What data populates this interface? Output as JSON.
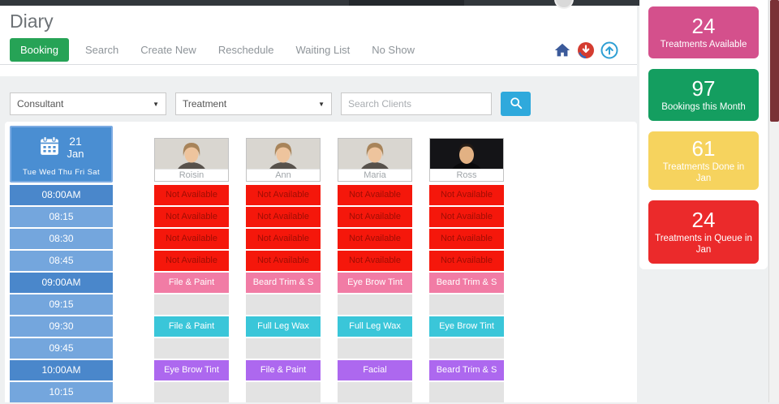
{
  "header": {
    "title": "Diary"
  },
  "tabs": [
    {
      "label": "Booking",
      "active": true
    },
    {
      "label": "Search",
      "active": false
    },
    {
      "label": "Create New",
      "active": false
    },
    {
      "label": "Reschedule",
      "active": false
    },
    {
      "label": "Waiting List",
      "active": false
    },
    {
      "label": "No Show",
      "active": false
    }
  ],
  "toolbar_icons": [
    {
      "name": "home-icon"
    },
    {
      "name": "download-icon"
    },
    {
      "name": "scroll-top-icon"
    }
  ],
  "filters": {
    "consultant_label": "Consultant",
    "treatment_label": "Treatment",
    "search_placeholder": "Search Clients"
  },
  "calendar": {
    "day": "21",
    "month": "Jan",
    "weekdays": "Tue Wed Thu Fri Sat"
  },
  "time_slots": [
    {
      "label": "08:00AM",
      "hour": true
    },
    {
      "label": "08:15",
      "hour": false
    },
    {
      "label": "08:30",
      "hour": false
    },
    {
      "label": "08:45",
      "hour": false
    },
    {
      "label": "09:00AM",
      "hour": true
    },
    {
      "label": "09:15",
      "hour": false
    },
    {
      "label": "09:30",
      "hour": false
    },
    {
      "label": "09:45",
      "hour": false
    },
    {
      "label": "10:00AM",
      "hour": true
    },
    {
      "label": "10:15",
      "hour": false
    }
  ],
  "consultants": [
    {
      "name": "Roisin",
      "gender": "female",
      "slots": [
        {
          "text": "Not Available",
          "type": "unavailable"
        },
        {
          "text": "Not Available",
          "type": "unavailable"
        },
        {
          "text": "Not Available",
          "type": "unavailable"
        },
        {
          "text": "Not Available",
          "type": "unavailable"
        },
        {
          "text": "File & Paint",
          "type": "pink"
        },
        {
          "text": "",
          "type": "empty"
        },
        {
          "text": "File & Paint",
          "type": "teal"
        },
        {
          "text": "",
          "type": "empty"
        },
        {
          "text": "Eye Brow Tint",
          "type": "purple"
        },
        {
          "text": "",
          "type": "empty"
        }
      ]
    },
    {
      "name": "Ann",
      "gender": "female",
      "slots": [
        {
          "text": "Not Available",
          "type": "unavailable"
        },
        {
          "text": "Not Available",
          "type": "unavailable"
        },
        {
          "text": "Not Available",
          "type": "unavailable"
        },
        {
          "text": "Not Available",
          "type": "unavailable"
        },
        {
          "text": "Beard Trim & S",
          "type": "pink"
        },
        {
          "text": "",
          "type": "empty"
        },
        {
          "text": "Full Leg Wax",
          "type": "teal"
        },
        {
          "text": "",
          "type": "empty"
        },
        {
          "text": "File & Paint",
          "type": "purple"
        },
        {
          "text": "",
          "type": "empty"
        }
      ]
    },
    {
      "name": "Maria",
      "gender": "female",
      "slots": [
        {
          "text": "Not Available",
          "type": "unavailable"
        },
        {
          "text": "Not Available",
          "type": "unavailable"
        },
        {
          "text": "Not Available",
          "type": "unavailable"
        },
        {
          "text": "Not Available",
          "type": "unavailable"
        },
        {
          "text": "Eye Brow Tint",
          "type": "pink"
        },
        {
          "text": "",
          "type": "empty"
        },
        {
          "text": "Full Leg Wax",
          "type": "teal"
        },
        {
          "text": "",
          "type": "empty"
        },
        {
          "text": "Facial",
          "type": "purple"
        },
        {
          "text": "",
          "type": "empty"
        }
      ]
    },
    {
      "name": "Ross",
      "gender": "male",
      "slots": [
        {
          "text": "Not Available",
          "type": "unavailable"
        },
        {
          "text": "Not Available",
          "type": "unavailable"
        },
        {
          "text": "Not Available",
          "type": "unavailable"
        },
        {
          "text": "Not Available",
          "type": "unavailable"
        },
        {
          "text": "Beard Trim & S",
          "type": "pink"
        },
        {
          "text": "",
          "type": "empty"
        },
        {
          "text": "Eye Brow Tint",
          "type": "teal"
        },
        {
          "text": "",
          "type": "empty"
        },
        {
          "text": "Beard Trim & S",
          "type": "purple"
        },
        {
          "text": "",
          "type": "empty"
        }
      ]
    }
  ],
  "stats": [
    {
      "value": "24",
      "label": "Treatments Available",
      "color": "#d4508c"
    },
    {
      "value": "97",
      "label": "Bookings this Month",
      "color": "#149e60"
    },
    {
      "value": "61",
      "label": "Treatments Done in Jan",
      "color": "#f6d35e"
    },
    {
      "value": "24",
      "label": "Treatments in Queue in Jan",
      "color": "#eb2a2b"
    }
  ],
  "colors": {
    "active_tab_green": "#26a356",
    "search_button_blue": "#2fa9dc",
    "hour_slot_blue": "#4a87cb",
    "quarter_slot_blue": "#74a6dd",
    "slot_unavailable_red": "#f5170b",
    "slot_pink": "#f17ca5",
    "slot_teal": "#3ac6d9",
    "slot_purple": "#ad68ef",
    "slot_empty_gray": "#e3e3e3"
  }
}
